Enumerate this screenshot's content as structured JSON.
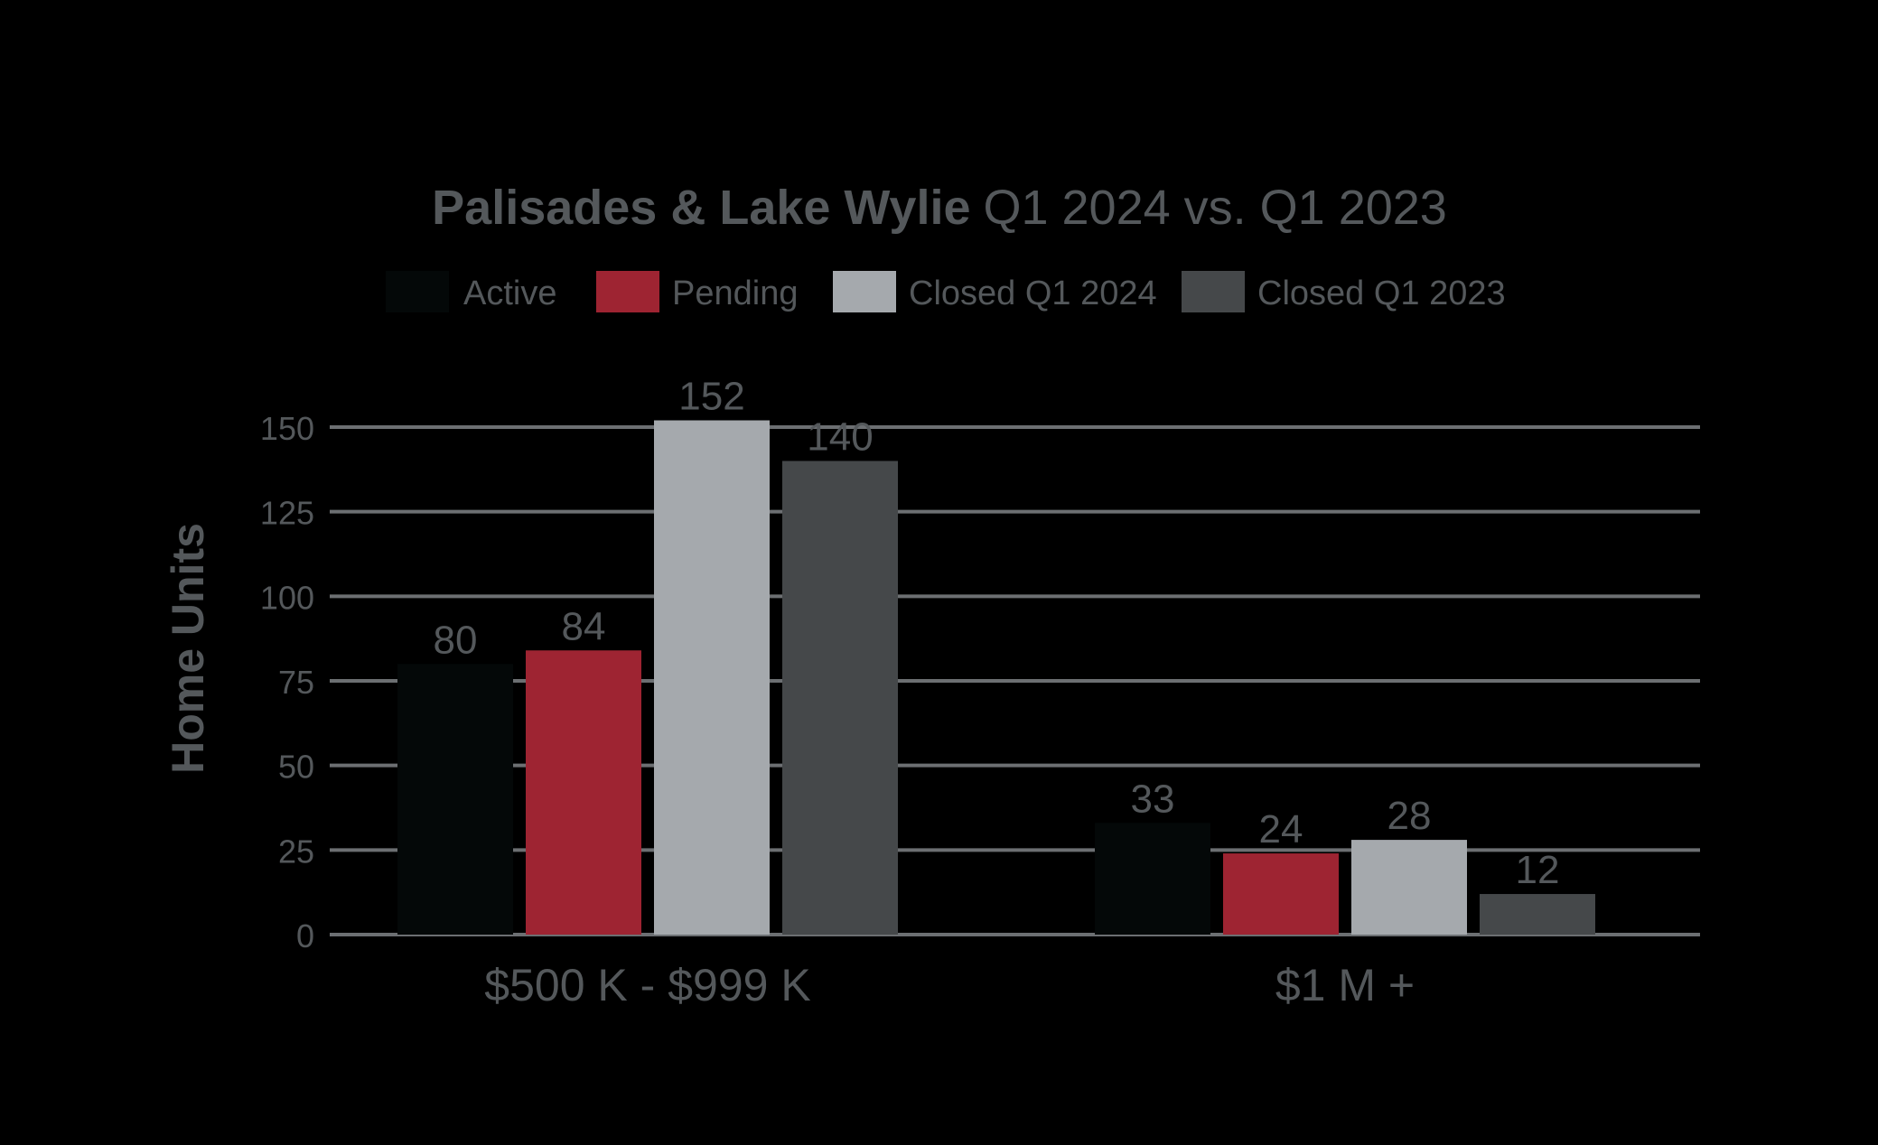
{
  "chart_data": {
    "type": "bar",
    "title": {
      "bold": "Palisades & Lake Wylie",
      "normal": "Q1 2024 vs. Q1 2023"
    },
    "xlabel": "",
    "ylabel": "Home Units",
    "ylim": [
      0,
      150
    ],
    "yticks": [
      0,
      25,
      50,
      75,
      100,
      125,
      150
    ],
    "grid": true,
    "legend_position": "top",
    "categories": [
      "$500 K - $999 K",
      "$1 M +"
    ],
    "series": [
      {
        "name": "Active",
        "color": "#040808",
        "values": [
          80,
          33
        ]
      },
      {
        "name": "Pending",
        "color": "#9e2432",
        "values": [
          84,
          24
        ]
      },
      {
        "name": "Closed Q1 2024",
        "color": "#a5a9ad",
        "values": [
          152,
          28
        ]
      },
      {
        "name": "Closed Q1 2023",
        "color": "#45484a",
        "values": [
          140,
          12
        ]
      }
    ],
    "text_color": "#54585b",
    "grid_color": "#6c6f72"
  }
}
